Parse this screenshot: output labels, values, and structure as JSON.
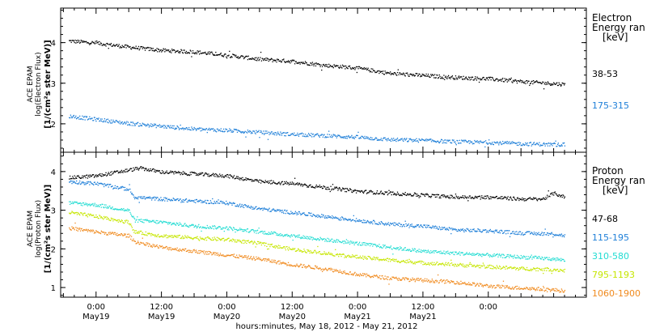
{
  "chart_data": [
    {
      "type": "scatter",
      "panel": "electron",
      "ylabel": [
        "ACE EPAM",
        "log(Electron Flux)",
        "[1/(cm²s ster MeV)]"
      ],
      "legend_title": [
        "Electron",
        "Energy ran",
        "[keV]"
      ],
      "ylim": [
        1.3,
        4.85
      ],
      "yticks": [
        2,
        3,
        4
      ],
      "grid": false,
      "legend_position": "right",
      "series": [
        {
          "name": "38-53",
          "color": "#000000",
          "x": [
            -5,
            0,
            6,
            12,
            18,
            24,
            30,
            36,
            42,
            45,
            48,
            54,
            60,
            66,
            72,
            78,
            84,
            86
          ],
          "y": [
            4.05,
            4.0,
            3.9,
            3.82,
            3.78,
            3.7,
            3.6,
            3.55,
            3.45,
            3.42,
            3.38,
            3.25,
            3.2,
            3.15,
            3.12,
            3.05,
            3.0,
            2.98
          ]
        },
        {
          "name": "175-315",
          "color": "#1e7fd8",
          "x": [
            -5,
            0,
            6,
            12,
            18,
            24,
            30,
            36,
            42,
            48,
            54,
            60,
            66,
            72,
            78,
            84,
            86
          ],
          "y": [
            2.2,
            2.12,
            2.02,
            1.95,
            1.88,
            1.85,
            1.8,
            1.75,
            1.72,
            1.68,
            1.62,
            1.6,
            1.57,
            1.55,
            1.52,
            1.5,
            1.5
          ]
        }
      ]
    },
    {
      "type": "scatter",
      "panel": "proton",
      "ylabel": [
        "ACE EPAM",
        "log(Proton Flux)",
        "[1/(cm²s ster MeV)]"
      ],
      "legend_title": [
        "Proton",
        "Energy ran",
        "[keV]"
      ],
      "ylim": [
        0.75,
        4.5
      ],
      "yticks": [
        1,
        2,
        3,
        4
      ],
      "grid": false,
      "legend_position": "right",
      "series": [
        {
          "name": "47-68",
          "color": "#000000",
          "x": [
            -5,
            0,
            6,
            8,
            12,
            18,
            24,
            30,
            36,
            42,
            48,
            54,
            60,
            66,
            72,
            78,
            82,
            84,
            86
          ],
          "y": [
            3.85,
            3.9,
            4.05,
            4.1,
            4.0,
            3.95,
            3.9,
            3.75,
            3.7,
            3.6,
            3.5,
            3.45,
            3.4,
            3.35,
            3.35,
            3.3,
            3.3,
            3.45,
            3.35
          ]
        },
        {
          "name": "115-195",
          "color": "#1e7fd8",
          "x": [
            -5,
            0,
            6,
            7,
            12,
            18,
            24,
            30,
            36,
            42,
            48,
            54,
            60,
            66,
            72,
            78,
            84,
            86
          ],
          "y": [
            3.75,
            3.7,
            3.55,
            3.35,
            3.3,
            3.25,
            3.2,
            3.05,
            2.95,
            2.85,
            2.75,
            2.65,
            2.6,
            2.5,
            2.48,
            2.42,
            2.4,
            2.35
          ]
        },
        {
          "name": "310-580",
          "color": "#22dcd2",
          "x": [
            -5,
            0,
            6,
            7,
            12,
            18,
            24,
            30,
            36,
            42,
            48,
            54,
            60,
            66,
            72,
            78,
            84,
            86
          ],
          "y": [
            3.2,
            3.15,
            3.0,
            2.75,
            2.7,
            2.6,
            2.55,
            2.45,
            2.35,
            2.25,
            2.15,
            2.05,
            1.95,
            1.9,
            1.85,
            1.8,
            1.75,
            1.72
          ]
        },
        {
          "name": "795-1193",
          "color": "#c6e600",
          "x": [
            -5,
            0,
            6,
            7,
            12,
            18,
            24,
            30,
            36,
            42,
            48,
            54,
            60,
            66,
            72,
            78,
            84,
            86
          ],
          "y": [
            2.95,
            2.85,
            2.7,
            2.45,
            2.35,
            2.3,
            2.25,
            2.15,
            2.0,
            1.9,
            1.8,
            1.72,
            1.65,
            1.6,
            1.55,
            1.5,
            1.48,
            1.45
          ]
        },
        {
          "name": "1060-1900",
          "color": "#f08a1e",
          "x": [
            -5,
            0,
            6,
            7,
            12,
            18,
            24,
            30,
            36,
            42,
            48,
            54,
            60,
            66,
            72,
            78,
            84,
            86
          ],
          "y": [
            2.55,
            2.45,
            2.35,
            2.2,
            2.05,
            1.95,
            1.85,
            1.75,
            1.6,
            1.5,
            1.35,
            1.25,
            1.2,
            1.15,
            1.05,
            1.0,
            0.95,
            0.92
          ]
        }
      ]
    }
  ],
  "x_axis": {
    "range_hours": [
      -6.5,
      90
    ],
    "tick_hours": [
      0,
      12,
      24,
      36,
      48,
      60,
      72
    ],
    "tick_labels": [
      "0:00",
      "12:00",
      "0:00",
      "12:00",
      "0:00",
      "12:00",
      "0:00"
    ],
    "date_hours": [
      0,
      12,
      24,
      36,
      48,
      60,
      72
    ],
    "date_labels": [
      "May19",
      "May19",
      "May20",
      "May20",
      "May21",
      "May21",
      ""
    ],
    "title": "hours:minutes, May 18, 2012 - May 21, 2012"
  }
}
